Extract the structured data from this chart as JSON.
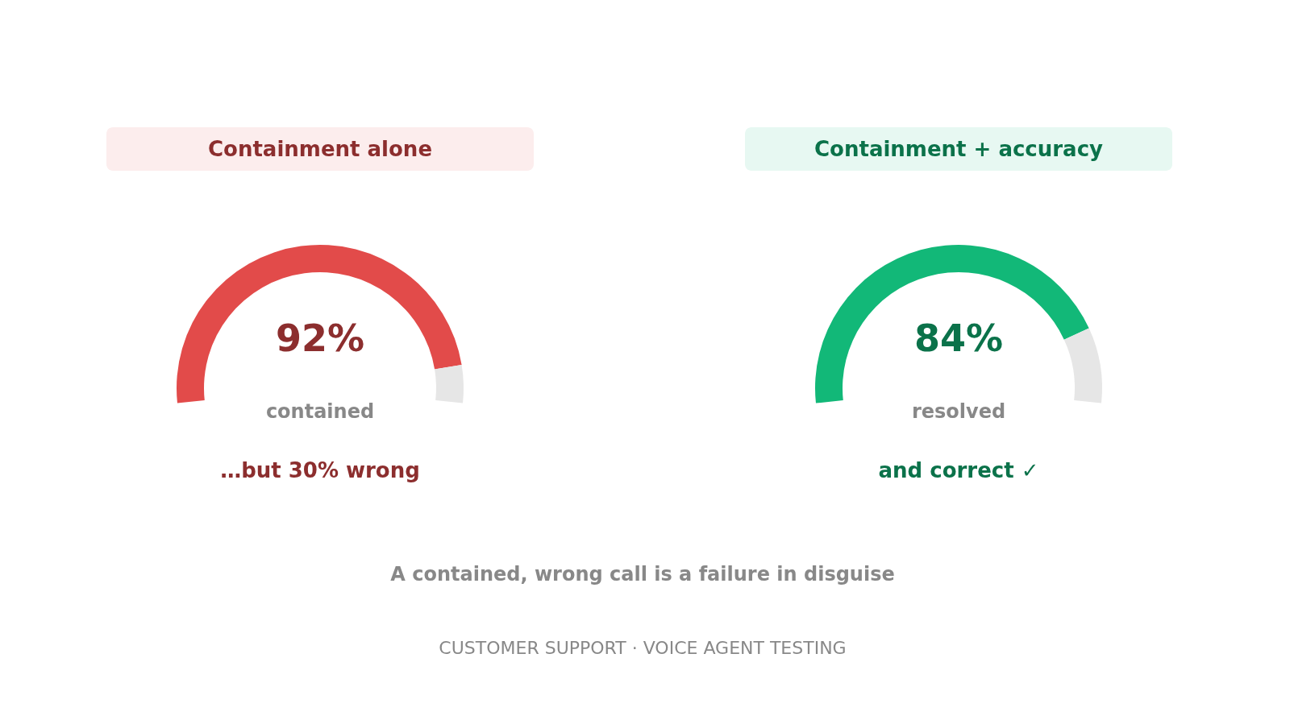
{
  "chart_data": [
    {
      "type": "donut",
      "title": "Containment alone",
      "categories": [
        null,
        null
      ],
      "values": [
        92,
        8
      ],
      "colors": [
        "#e24b4a",
        "#e6e6e6"
      ],
      "value_labels": [
        "92%",
        null
      ],
      "annotations": [
        "contained",
        "…but 30% wrong"
      ]
    },
    {
      "type": "donut",
      "title": "Containment + accuracy",
      "categories": [
        null,
        null
      ],
      "values": [
        84,
        16
      ],
      "colors": [
        "#12b878",
        "#e6e6e6"
      ],
      "value_labels": [
        "84%",
        null
      ],
      "annotations": [
        "resolved",
        "and correct ✓",
        "A contained, wrong call is a failure in disguise",
        "CUSTOMER SUPPORT · VOICE AGENT TESTING"
      ]
    }
  ]
}
